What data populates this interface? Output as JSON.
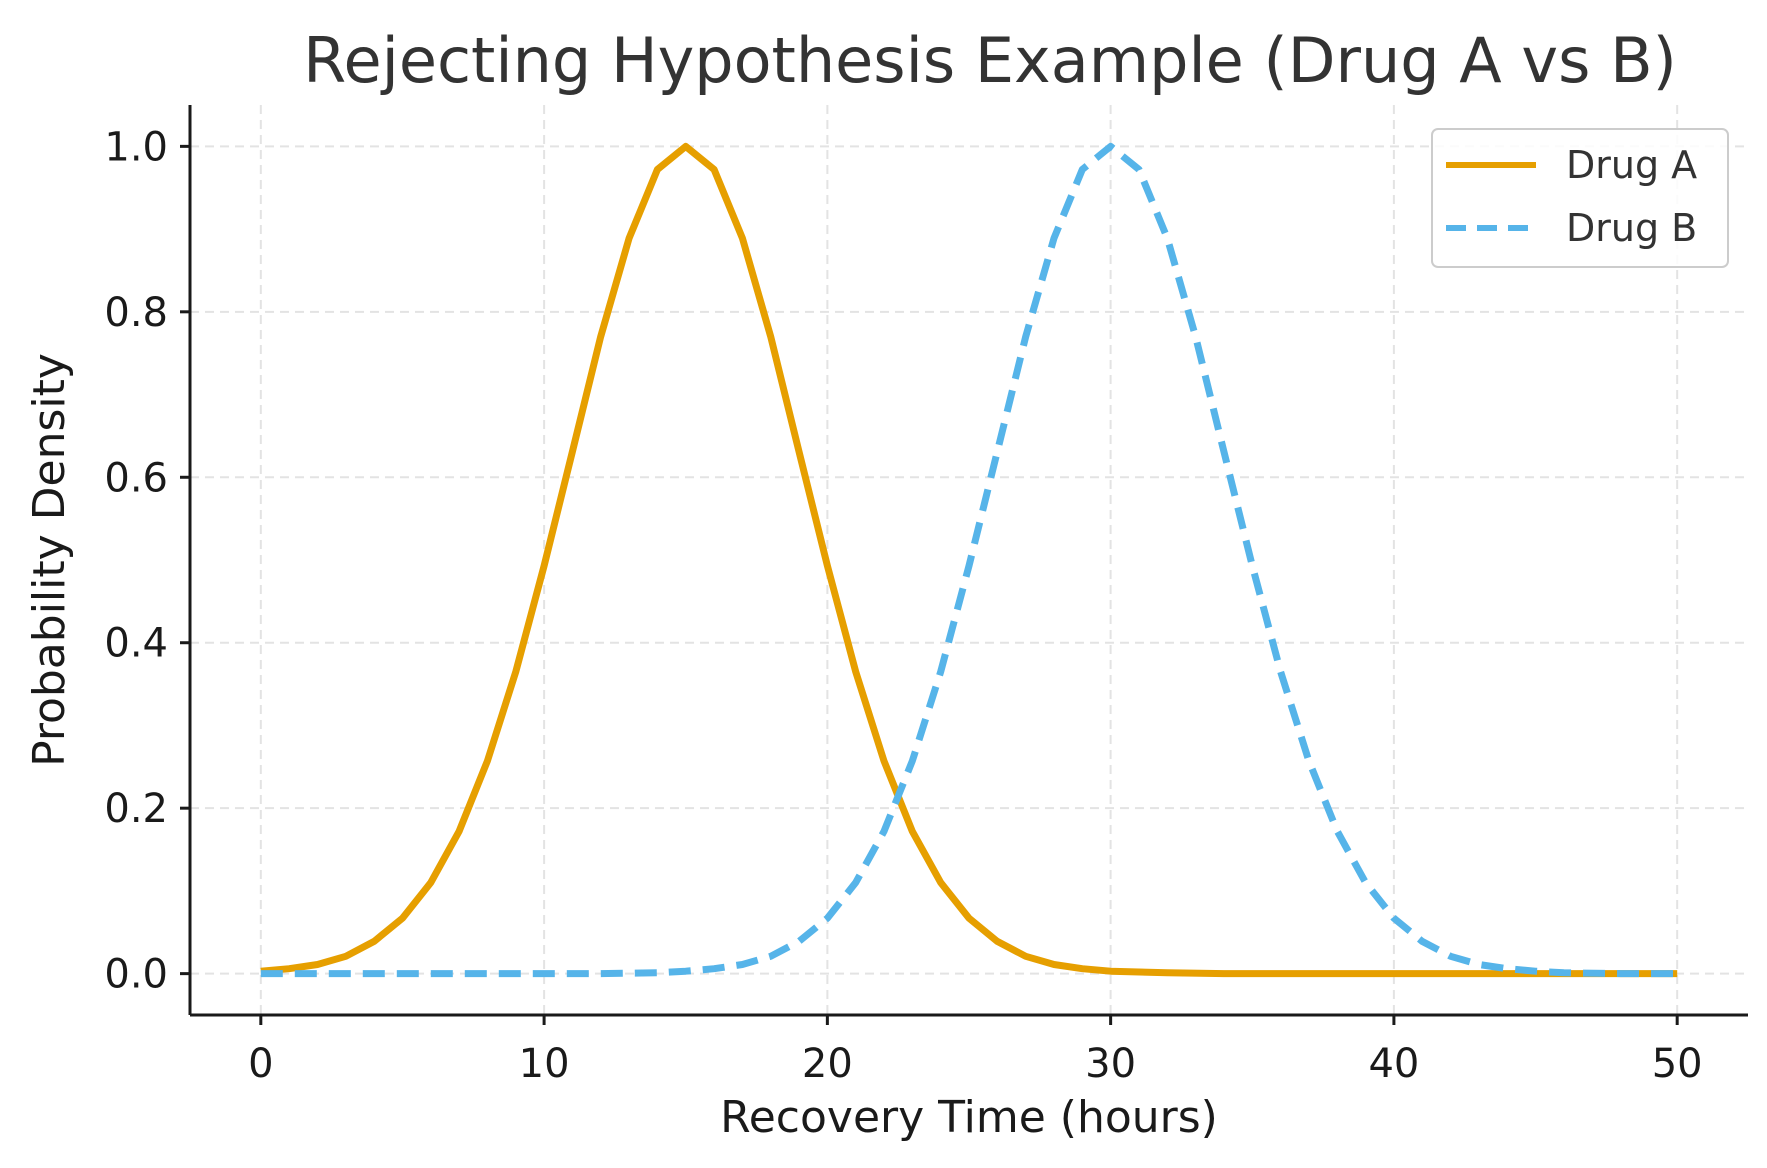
{
  "chart_data": {
    "type": "line",
    "title": "Rejecting Hypothesis Example (Drug A vs B)",
    "xlabel": "Recovery Time (hours)",
    "ylabel": "Probability Density",
    "xlim": [
      -2.5,
      52.5
    ],
    "ylim": [
      -0.05,
      1.05
    ],
    "xticks": [
      0,
      10,
      20,
      30,
      40,
      50
    ],
    "xtick_labels": [
      "0",
      "10",
      "20",
      "30",
      "40",
      "50"
    ],
    "yticks": [
      0.0,
      0.2,
      0.4,
      0.6,
      0.8,
      1.0
    ],
    "ytick_labels": [
      "0.0",
      "0.2",
      "0.4",
      "0.6",
      "0.8",
      "1.0"
    ],
    "grid": true,
    "legend": {
      "position": "top-right"
    },
    "series": [
      {
        "name": "Drug A",
        "color": "#E69F00",
        "line_style": "solid",
        "x": [
          0,
          1,
          2,
          3,
          4,
          5,
          6,
          7,
          8,
          9,
          10,
          11,
          12,
          13,
          14,
          15,
          16,
          17,
          18,
          19,
          20,
          21,
          22,
          23,
          24,
          25,
          26,
          27,
          28,
          29,
          30,
          32,
          34,
          36,
          38,
          40,
          42,
          44,
          46,
          48,
          50
        ],
        "y": [
          0.003,
          0.006,
          0.011,
          0.021,
          0.039,
          0.067,
          0.11,
          0.172,
          0.257,
          0.365,
          0.493,
          0.631,
          0.77,
          0.889,
          0.972,
          1.0,
          0.972,
          0.889,
          0.77,
          0.631,
          0.493,
          0.365,
          0.257,
          0.172,
          0.11,
          0.067,
          0.039,
          0.021,
          0.011,
          0.006,
          0.003,
          0.001,
          0.0,
          0.0,
          0.0,
          0.0,
          0.0,
          0.0,
          0.0,
          0.0,
          0.0
        ]
      },
      {
        "name": "Drug B",
        "color": "#56B4E9",
        "line_style": "dashed",
        "x": [
          0,
          2,
          4,
          6,
          8,
          10,
          12,
          14,
          15,
          16,
          17,
          18,
          19,
          20,
          21,
          22,
          23,
          24,
          25,
          26,
          27,
          28,
          29,
          30,
          31,
          32,
          33,
          34,
          35,
          36,
          37,
          38,
          39,
          40,
          41,
          42,
          43,
          44,
          45,
          46,
          48,
          50
        ],
        "y": [
          0.0,
          0.0,
          0.0,
          0.0,
          0.0,
          0.0,
          0.0,
          0.001,
          0.003,
          0.006,
          0.011,
          0.021,
          0.039,
          0.067,
          0.11,
          0.172,
          0.257,
          0.365,
          0.493,
          0.631,
          0.77,
          0.889,
          0.972,
          1.0,
          0.972,
          0.889,
          0.77,
          0.631,
          0.493,
          0.365,
          0.257,
          0.172,
          0.11,
          0.067,
          0.039,
          0.021,
          0.011,
          0.006,
          0.003,
          0.001,
          0.0,
          0.0
        ]
      }
    ]
  }
}
